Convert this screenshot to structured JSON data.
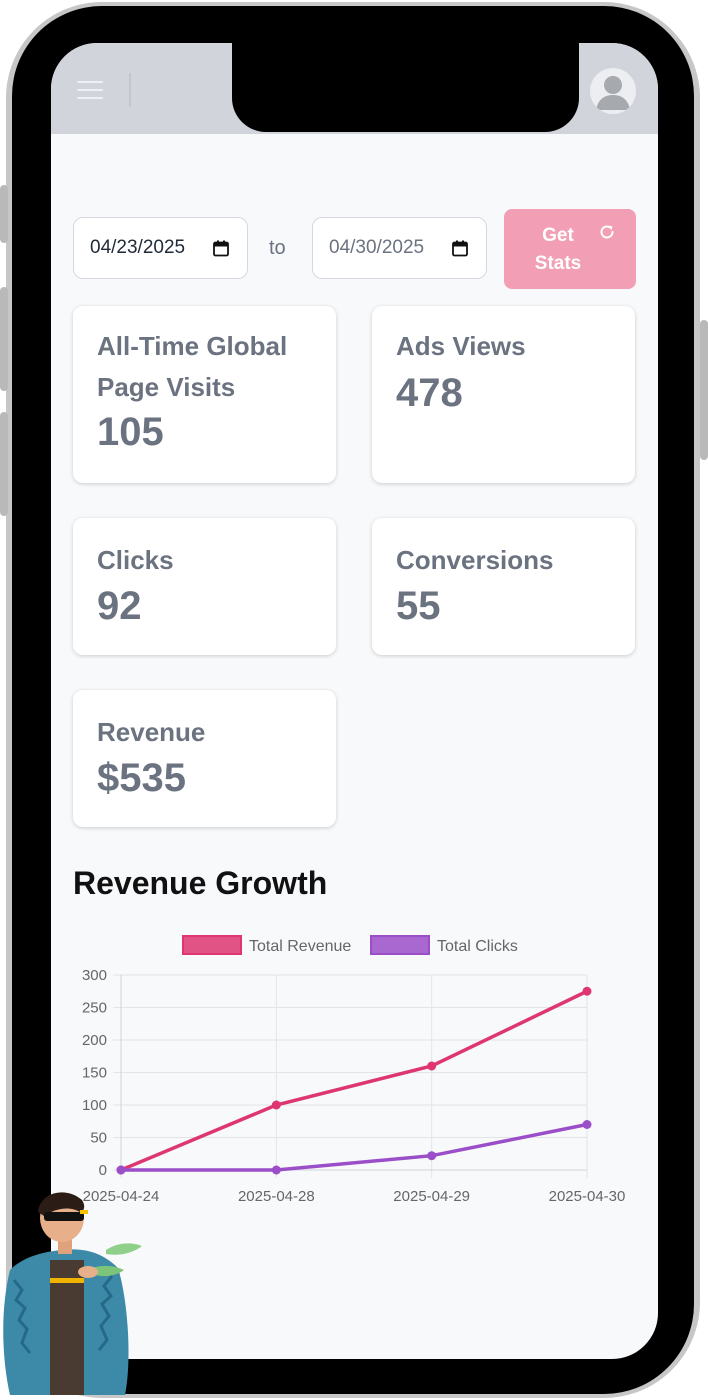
{
  "filters": {
    "start_date": "04/23/2025",
    "end_date": "04/30/2025",
    "separator": "to",
    "button_label": "Get Stats"
  },
  "stats": {
    "page_visits": {
      "label": "All-Time Global Page Visits",
      "value": "105"
    },
    "ads_views": {
      "label": "Ads Views",
      "value": "478"
    },
    "clicks": {
      "label": "Clicks",
      "value": "92"
    },
    "conversions": {
      "label": "Conversions",
      "value": "55"
    },
    "revenue": {
      "label": "Revenue",
      "value": "$535"
    }
  },
  "section": {
    "title": "Revenue Growth"
  },
  "colors": {
    "accent": "#f29fb5",
    "revenue_line": "#de3670",
    "clicks_line": "#9a4fc8"
  },
  "chart_data": {
    "type": "line",
    "title": "",
    "xlabel": "",
    "ylabel": "",
    "categories": [
      "2025-04-24",
      "2025-04-28",
      "2025-04-29",
      "2025-04-30"
    ],
    "ylim": [
      0,
      300
    ],
    "yticks": [
      0,
      50,
      100,
      150,
      200,
      250,
      300
    ],
    "grid": true,
    "legend": "top-center",
    "series": [
      {
        "name": "Total Revenue",
        "values": [
          0,
          100,
          160,
          275
        ],
        "color": "#de3670"
      },
      {
        "name": "Total Clicks",
        "values": [
          0,
          0,
          22,
          70
        ],
        "color": "#9a4fc8"
      }
    ]
  }
}
